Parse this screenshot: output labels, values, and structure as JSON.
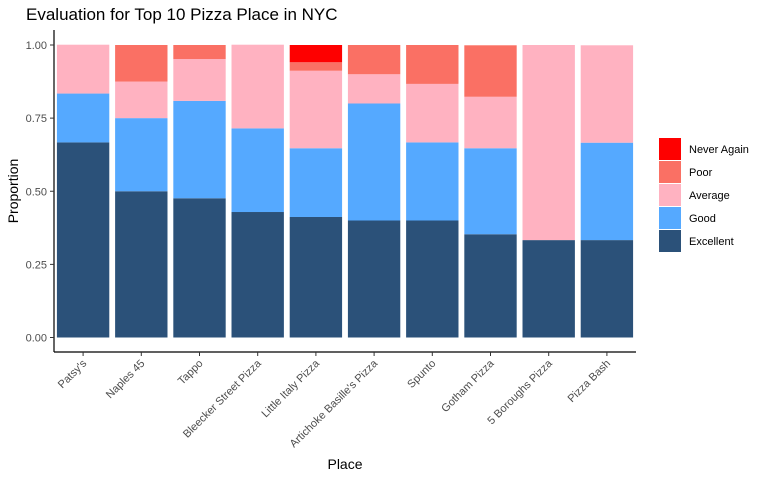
{
  "chart_data": {
    "type": "bar",
    "stacked": true,
    "title": "Evaluation for Top 10 Pizza Place in NYC",
    "xlabel": "Place",
    "ylabel": "Proportion",
    "ylim": [
      0,
      1
    ],
    "yticks": [
      "0.00",
      "0.25",
      "0.50",
      "0.75",
      "1.00"
    ],
    "grid": false,
    "legend_position": "right",
    "categories": [
      "Patsy's",
      "Naples 45",
      "Tappo",
      "Bleecker Street Pizza",
      "Little Italy Pizza",
      "Artichoke Basille's Pizza",
      "Spunto",
      "Gotham Pizza",
      "5 Boroughs Pizza",
      "Pizza Bash"
    ],
    "series": [
      {
        "name": "Excellent",
        "color": "#2b5179",
        "values": [
          0.667,
          0.5,
          0.476,
          0.429,
          0.412,
          0.4,
          0.4,
          0.353,
          0.333,
          0.333
        ]
      },
      {
        "name": "Good",
        "color": "#55a9ff",
        "values": [
          0.167,
          0.25,
          0.333,
          0.286,
          0.235,
          0.4,
          0.267,
          0.294,
          0.0,
          0.333
        ]
      },
      {
        "name": "Average",
        "color": "#ffb2c1",
        "values": [
          0.167,
          0.125,
          0.143,
          0.286,
          0.265,
          0.1,
          0.2,
          0.176,
          0.667,
          0.333
        ]
      },
      {
        "name": "Poor",
        "color": "#fa7064",
        "values": [
          0.0,
          0.125,
          0.048,
          0.0,
          0.029,
          0.1,
          0.133,
          0.176,
          0.0,
          0.0
        ]
      },
      {
        "name": "Never Again",
        "color": "#fe0000",
        "values": [
          0.0,
          0.0,
          0.0,
          0.0,
          0.059,
          0.0,
          0.0,
          0.0,
          0.0,
          0.0
        ]
      }
    ],
    "legend_order": [
      "Never Again",
      "Poor",
      "Average",
      "Good",
      "Excellent"
    ]
  }
}
